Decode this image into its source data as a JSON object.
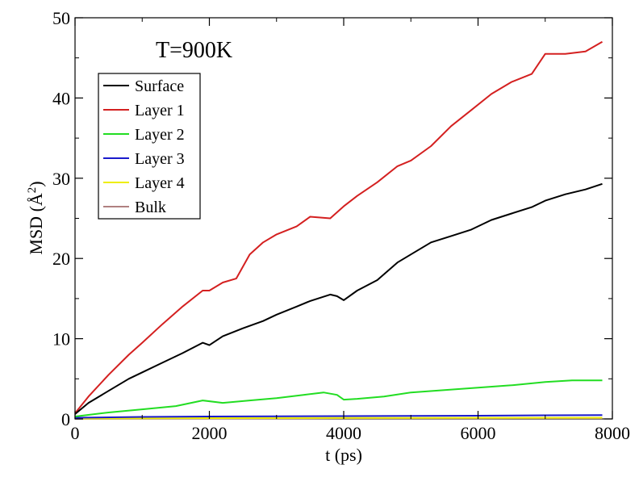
{
  "chart_data": {
    "type": "line",
    "annotation": "T=900K",
    "xlabel": "t (ps)",
    "ylabel_main": "MSD (",
    "ylabel_unit": "Å",
    "ylabel_sup": "2",
    "ylabel_close": ")",
    "xlim": [
      0,
      8000
    ],
    "ylim": [
      0,
      50
    ],
    "xticks": [
      0,
      2000,
      4000,
      6000,
      8000
    ],
    "xtick_labels": [
      "0",
      "2000",
      "4000",
      "6000",
      "8000"
    ],
    "yticks": [
      0,
      10,
      20,
      30,
      40,
      50
    ],
    "ytick_labels": [
      "0",
      "10",
      "20",
      "30",
      "40",
      "50"
    ],
    "grid": false,
    "legend_position": "top-left",
    "series": [
      {
        "name": "Surface",
        "color": "#000000",
        "x": [
          0,
          200,
          500,
          800,
          1000,
          1300,
          1600,
          1900,
          2000,
          2200,
          2500,
          2800,
          3000,
          3300,
          3500,
          3800,
          3900,
          4000,
          4200,
          4500,
          4800,
          5000,
          5300,
          5600,
          5900,
          6200,
          6500,
          6800,
          7000,
          7300,
          7600,
          7850
        ],
        "y": [
          0.6,
          2.0,
          3.5,
          5.0,
          5.8,
          7.0,
          8.2,
          9.5,
          9.2,
          10.3,
          11.3,
          12.2,
          13.0,
          14.0,
          14.7,
          15.5,
          15.3,
          14.8,
          16.0,
          17.3,
          19.5,
          20.5,
          22.0,
          22.8,
          23.6,
          24.8,
          25.6,
          26.4,
          27.2,
          28.0,
          28.6,
          29.3
        ]
      },
      {
        "name": "Layer 1",
        "color": "#d42020",
        "x": [
          0,
          200,
          500,
          800,
          1000,
          1300,
          1600,
          1900,
          2000,
          2200,
          2400,
          2600,
          2800,
          3000,
          3300,
          3500,
          3800,
          4000,
          4200,
          4500,
          4800,
          5000,
          5300,
          5600,
          5900,
          6200,
          6500,
          6800,
          7000,
          7300,
          7600,
          7850
        ],
        "y": [
          0.7,
          2.8,
          5.5,
          8.0,
          9.5,
          11.8,
          14.0,
          16.0,
          16.0,
          17.0,
          17.5,
          20.5,
          22.0,
          23.0,
          24.0,
          25.2,
          25.0,
          26.5,
          27.8,
          29.5,
          31.5,
          32.2,
          34.0,
          36.5,
          38.5,
          40.5,
          42.0,
          43.0,
          45.5,
          45.5,
          45.8,
          47.0
        ]
      },
      {
        "name": "Layer 2",
        "color": "#22dd22",
        "x": [
          0,
          500,
          1000,
          1500,
          1900,
          2200,
          2600,
          3000,
          3400,
          3700,
          3900,
          4000,
          4200,
          4600,
          5000,
          5500,
          6000,
          6500,
          7000,
          7400,
          7850
        ],
        "y": [
          0.3,
          0.8,
          1.2,
          1.6,
          2.3,
          2.0,
          2.3,
          2.6,
          3.0,
          3.3,
          3.0,
          2.4,
          2.5,
          2.8,
          3.3,
          3.6,
          3.9,
          4.2,
          4.6,
          4.8,
          4.8
        ]
      },
      {
        "name": "Layer 3",
        "color": "#1a1acc",
        "x": [
          0,
          1000,
          2000,
          3000,
          4000,
          5000,
          6000,
          7000,
          7850
        ],
        "y": [
          0.15,
          0.25,
          0.3,
          0.32,
          0.35,
          0.38,
          0.4,
          0.45,
          0.48
        ]
      },
      {
        "name": "Layer 4",
        "color": "#eeee00",
        "x": [
          0,
          2000,
          4000,
          6000,
          7850
        ],
        "y": [
          0.05,
          0.1,
          0.12,
          0.14,
          0.15
        ]
      },
      {
        "name": "Bulk",
        "color": "#b08080",
        "x": [
          0,
          2000,
          4000,
          6000,
          7850
        ],
        "y": [
          0.02,
          0.05,
          0.07,
          0.08,
          0.09
        ]
      }
    ]
  }
}
